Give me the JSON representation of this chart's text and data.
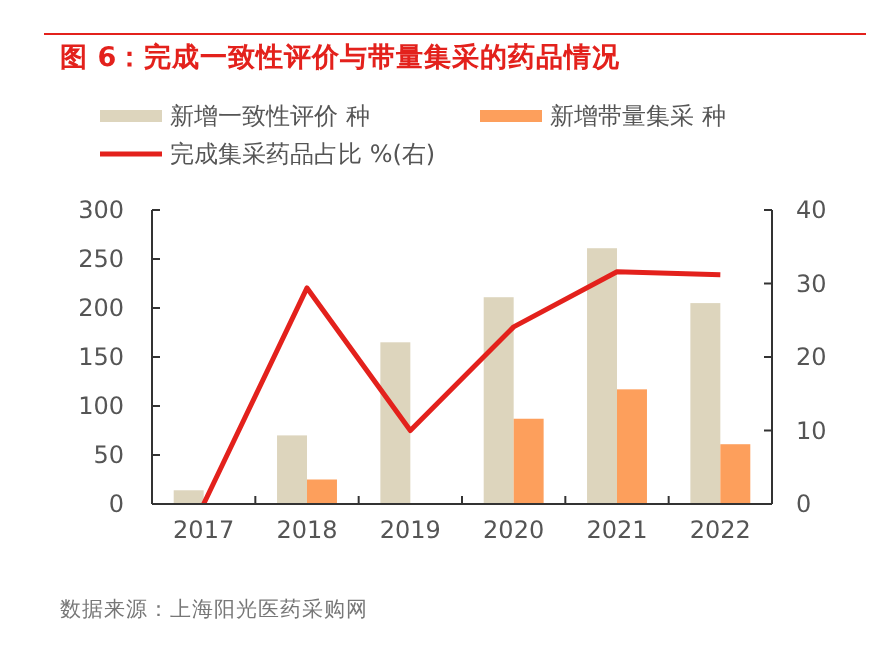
{
  "chart_data": {
    "type": "bar",
    "title": "图 6：完成一致性评价与带量集采的药品情况",
    "categories": [
      "2017",
      "2018",
      "2019",
      "2020",
      "2021",
      "2022"
    ],
    "series": [
      {
        "name": "新增一致性评价 种",
        "color": "#ddd5bd",
        "values": [
          14,
          70,
          165,
          211,
          261,
          205
        ]
      },
      {
        "name": "新增带量集采 种",
        "color": "#fd9f5c",
        "values": [
          null,
          25,
          null,
          87,
          117,
          61
        ]
      },
      {
        "name": "完成集采药品占比 %(右)",
        "type": "line",
        "axis": "y2",
        "color": "#e3211c",
        "values": [
          0,
          29.4,
          10,
          24.1,
          31.6,
          31.2
        ]
      }
    ],
    "ylim": [
      0,
      300
    ],
    "yticks": [
      0,
      50,
      100,
      150,
      200,
      250,
      300
    ],
    "y2lim": [
      0,
      40
    ],
    "y2ticks": [
      0,
      10,
      20,
      30,
      40
    ],
    "legend": "top left",
    "grid": false,
    "annotations": [
      "数据来源：上海阳光医药采购网"
    ]
  }
}
